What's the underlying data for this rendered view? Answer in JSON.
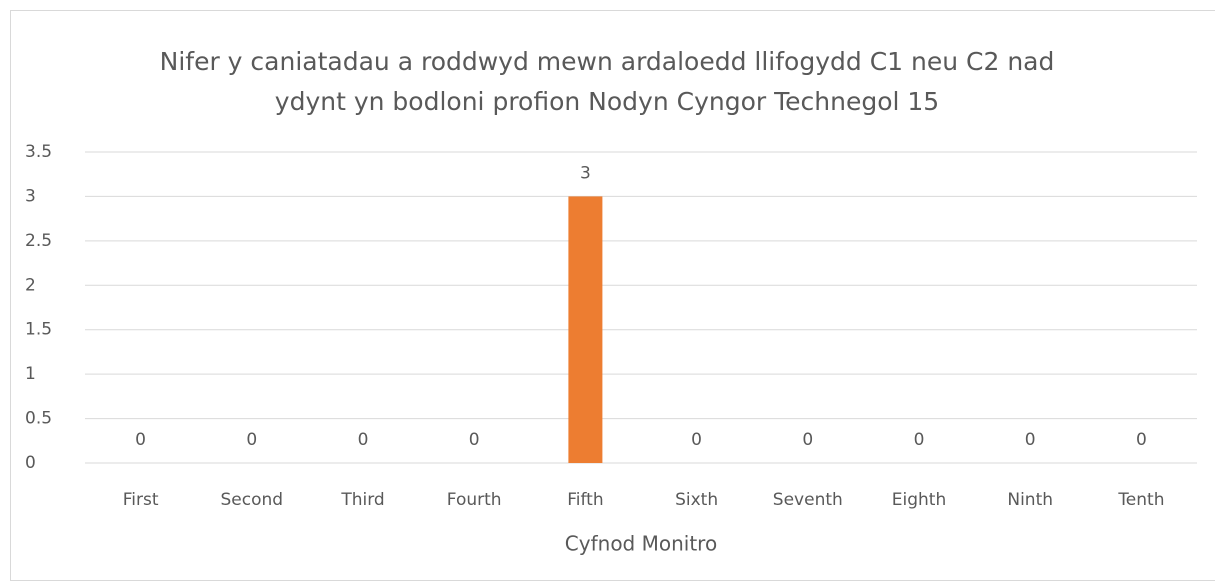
{
  "chart_data": {
    "type": "bar",
    "title": "Nifer y caniatadau a roddwyd mewn ardaloedd llifogydd C1 neu C2 nad ydynt yn bodloni profion Nodyn Cyngor Technegol 15",
    "x_label": "Cyfnod Monitro",
    "categories": [
      "First",
      "Second",
      "Third",
      "Fourth",
      "Fifth",
      "Sixth",
      "Seventh",
      "Eighth",
      "Ninth",
      "Tenth"
    ],
    "values": [
      0,
      0,
      0,
      0,
      3,
      0,
      0,
      0,
      0,
      0
    ],
    "color": "#ed7d31",
    "ylim": [
      0,
      3.5
    ],
    "yticks": [
      0,
      0.5,
      1,
      1.5,
      2,
      2.5,
      3,
      3.5
    ],
    "grid": true
  }
}
